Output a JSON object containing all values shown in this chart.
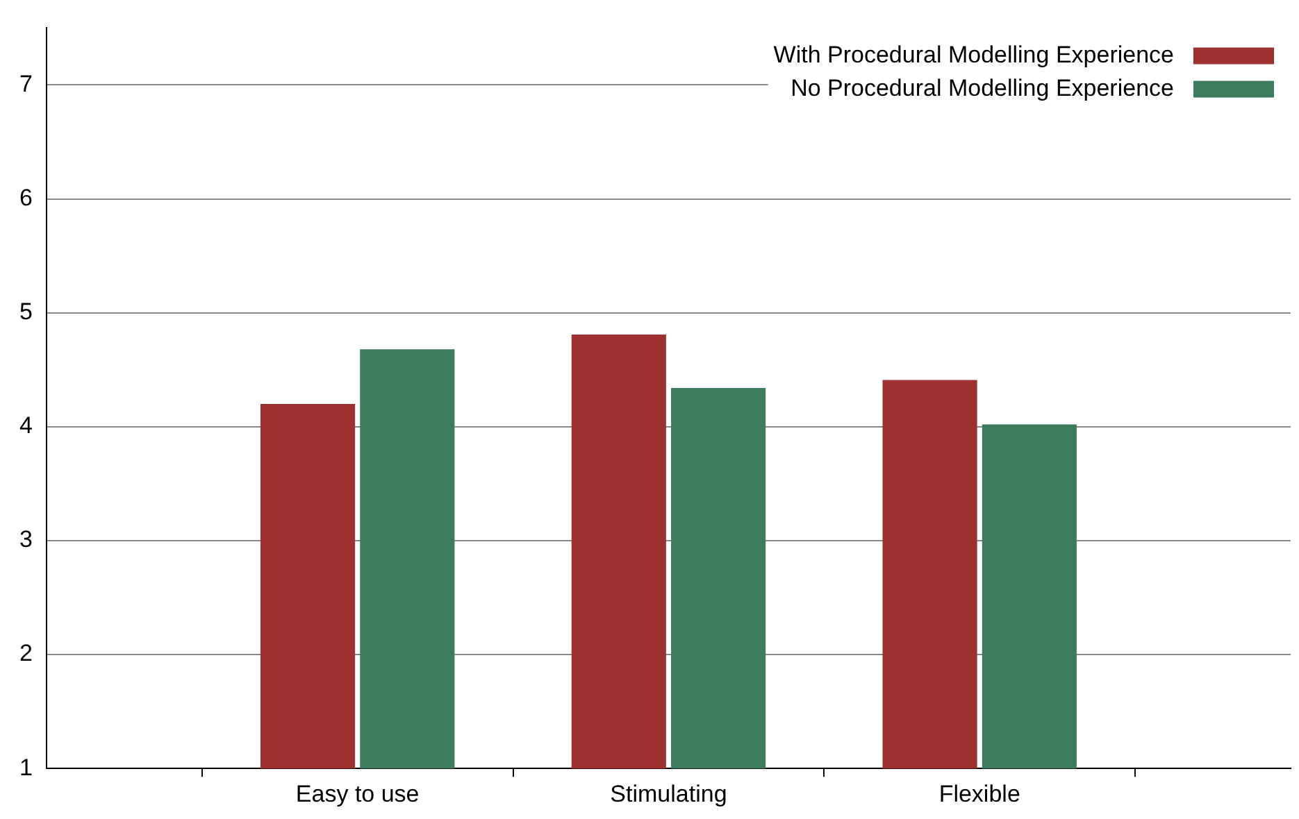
{
  "chart_data": {
    "type": "bar",
    "categories": [
      "Easy to use",
      "Stimulating",
      "Flexible"
    ],
    "series": [
      {
        "name": "With Procedural Modelling Experience",
        "color": "#9e3030",
        "values": [
          4.2,
          4.81,
          4.41
        ]
      },
      {
        "name": "No Procedural Modelling Experience",
        "color": "#3d7d5e",
        "values": [
          4.68,
          4.34,
          4.02
        ]
      }
    ],
    "ylim": [
      1,
      7.5
    ],
    "yticks": [
      1,
      2,
      3,
      4,
      5,
      6,
      7
    ],
    "grid": "y",
    "legend": "top right"
  }
}
